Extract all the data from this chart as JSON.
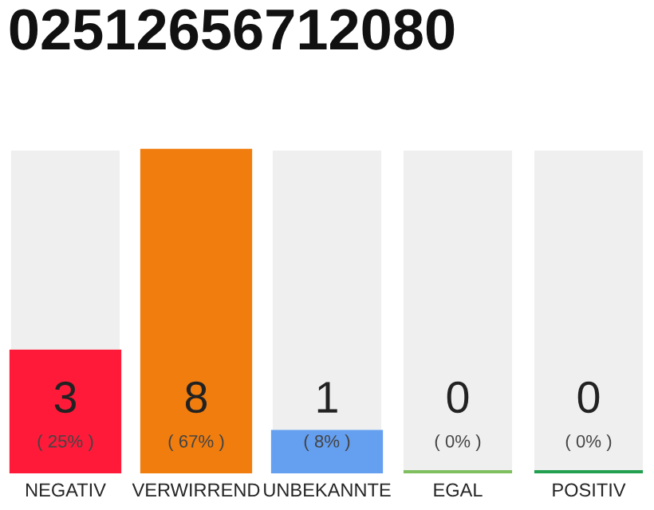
{
  "chart_data": {
    "type": "bar",
    "title": "02512656712080",
    "categories": [
      "NEGATIV",
      "VERWIRREND",
      "UNBEKANNTE",
      "EGAL",
      "POSITIV"
    ],
    "values": [
      3,
      8,
      1,
      0,
      0
    ],
    "colors": [
      "#ff1a3a",
      "#f07d0e",
      "#659ff0",
      "#7fbf5f",
      "#22a050"
    ],
    "data_labels": true,
    "annotations": [
      "( 25% )",
      "( 67% )",
      "( 8% )",
      "( 0% )",
      "( 0% )"
    ],
    "tick_labels": "x",
    "grid": false,
    "legend": false
  }
}
